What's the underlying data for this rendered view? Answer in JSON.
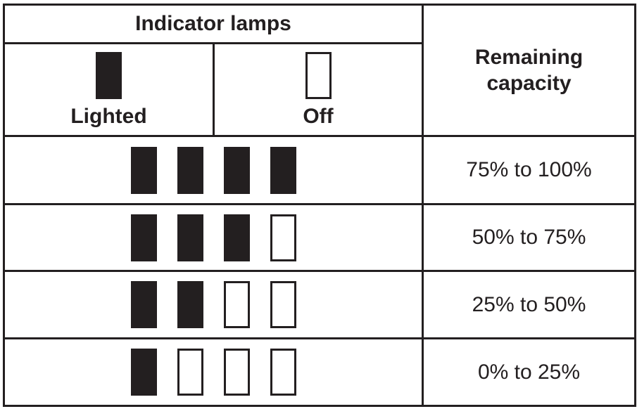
{
  "table": {
    "header": {
      "indicator_lamps": "Indicator lamps",
      "remaining_capacity": "Remaining\ncapacity"
    },
    "legend": {
      "lighted_label": "Lighted",
      "off_label": "Off"
    },
    "rows": [
      {
        "lamps": [
          "on",
          "on",
          "on",
          "on"
        ],
        "capacity": "75% to 100%"
      },
      {
        "lamps": [
          "on",
          "on",
          "on",
          "off"
        ],
        "capacity": "50% to 75%"
      },
      {
        "lamps": [
          "on",
          "on",
          "off",
          "off"
        ],
        "capacity": "25% to 50%"
      },
      {
        "lamps": [
          "on",
          "off",
          "off",
          "off"
        ],
        "capacity": "0% to 25%"
      }
    ]
  },
  "colors": {
    "ink": "#231f20",
    "lamp_on": "#231f20",
    "lamp_off": "#ffffff",
    "background": "#ffffff"
  }
}
